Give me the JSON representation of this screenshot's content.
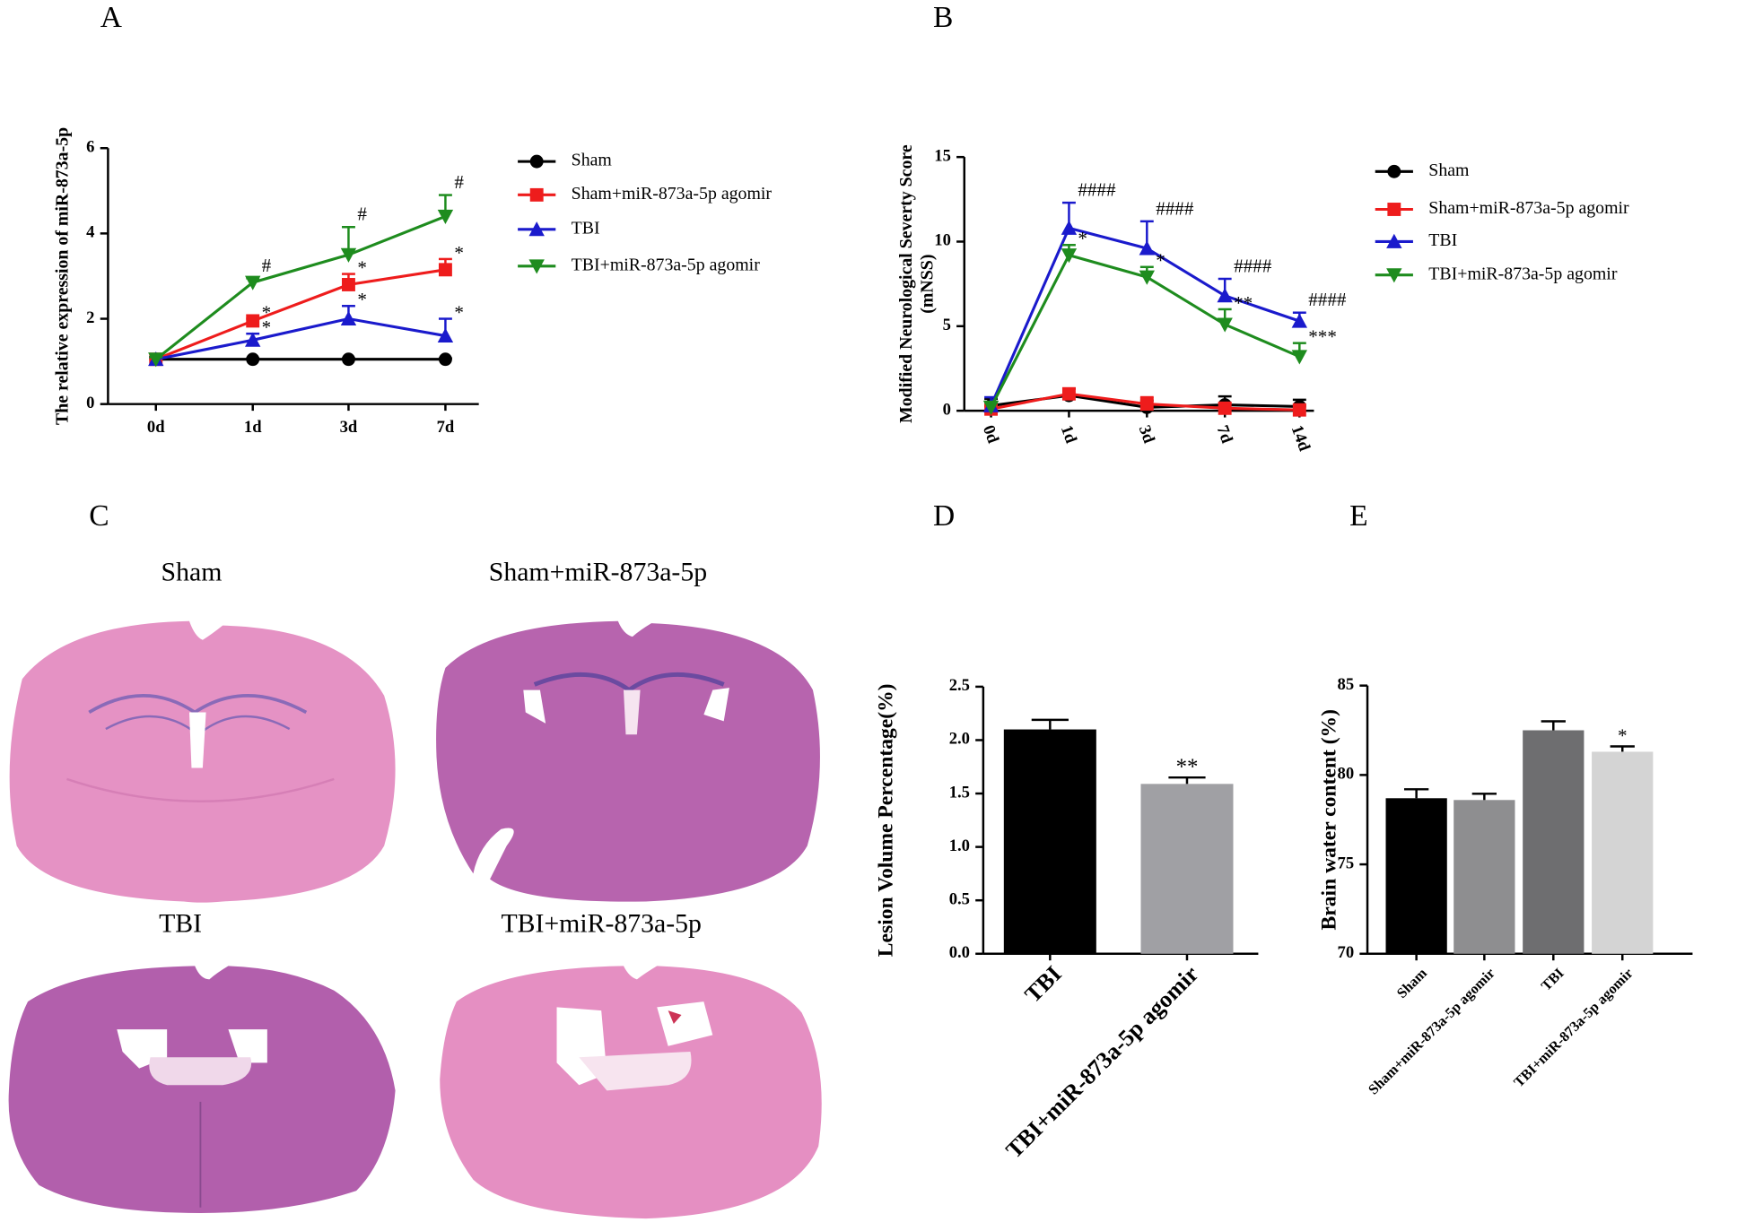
{
  "panels": [
    "A",
    "B",
    "C",
    "D",
    "E"
  ],
  "histology": {
    "labels": [
      "Sham",
      "Sham+miR-873a-5p",
      "TBI",
      "TBI+miR-873a-5p"
    ]
  },
  "chart_data": [
    {
      "type": "line",
      "ylabel": "The relative expression of miR-873a-5p",
      "categories": [
        "0d",
        "1d",
        "3d",
        "7d"
      ],
      "ylim": [
        0,
        6
      ],
      "yticks": [
        0,
        2,
        4,
        6
      ],
      "series": [
        {
          "name": "Sham",
          "color": "#000000",
          "marker": "circle",
          "values": [
            1.05,
            1.05,
            1.05,
            1.05
          ],
          "errors": [
            0.05,
            0.02,
            0.02,
            0.02
          ]
        },
        {
          "name": "Sham+miR-873a-5p agomir",
          "color": "#ee1c1c",
          "marker": "square",
          "values": [
            1.05,
            1.95,
            2.8,
            3.15
          ],
          "errors": [
            0.05,
            0.05,
            0.25,
            0.25
          ],
          "annotations": [
            null,
            "*",
            "*",
            "*"
          ]
        },
        {
          "name": "TBI",
          "color": "#1a1acc",
          "marker": "triangle-up",
          "values": [
            1.05,
            1.5,
            2.0,
            1.6
          ],
          "errors": [
            0.05,
            0.15,
            0.3,
            0.4
          ],
          "annotations": [
            null,
            "*",
            "*",
            "*"
          ]
        },
        {
          "name": "TBI+miR-873a-5p agomir",
          "color": "#1e8c1e",
          "marker": "triangle-down",
          "values": [
            1.05,
            2.85,
            3.5,
            4.4
          ],
          "errors": [
            0.05,
            0.1,
            0.65,
            0.5
          ],
          "annotations": [
            null,
            "#",
            "#",
            "#"
          ]
        }
      ]
    },
    {
      "type": "line",
      "ylabel": [
        "Modified Neurological Severty Score",
        "(mNSS)"
      ],
      "categories": [
        "0d",
        "1d",
        "3d",
        "7d",
        "14d"
      ],
      "ylim": [
        0,
        15
      ],
      "yticks": [
        0,
        5,
        10,
        15
      ],
      "series": [
        {
          "name": "Sham",
          "color": "#000000",
          "marker": "circle",
          "values": [
            0.3,
            0.9,
            0.2,
            0.35,
            0.25
          ],
          "errors": [
            0.4,
            0.4,
            0.4,
            0.5,
            0.4
          ]
        },
        {
          "name": "Sham+miR-873a-5p agomir",
          "color": "#ee1c1c",
          "marker": "square",
          "values": [
            0.1,
            1.0,
            0.4,
            0.15,
            0.05
          ],
          "errors": [
            0.2,
            0.3,
            0.4,
            0.3,
            0.3
          ]
        },
        {
          "name": "TBI",
          "color": "#1a1acc",
          "marker": "triangle-up",
          "values": [
            0.3,
            10.8,
            9.6,
            6.8,
            5.3
          ],
          "errors": [
            0.5,
            1.5,
            1.6,
            1.0,
            0.5
          ],
          "annotations": [
            null,
            "####",
            "####",
            "####",
            "####"
          ]
        },
        {
          "name": "TBI+miR-873a-5p agomir",
          "color": "#1e8c1e",
          "marker": "triangle-down",
          "values": [
            0.2,
            9.2,
            7.9,
            5.1,
            3.2
          ],
          "errors": [
            0.3,
            0.6,
            0.6,
            0.9,
            0.8
          ],
          "annotations": [
            null,
            "*",
            "*",
            "**",
            "***"
          ]
        }
      ]
    },
    {
      "type": "bar",
      "ylabel": "Lesion Volume Percentage(%)",
      "categories": [
        "TBI",
        "TBI+miR-873a-5p agomir"
      ],
      "values": [
        2.1,
        1.59
      ],
      "errors": [
        0.09,
        0.06
      ],
      "annotations": [
        null,
        "**"
      ],
      "colors": [
        "#000000",
        "#a0a0a4"
      ],
      "ylim": [
        0,
        2.5
      ],
      "yticks": [
        {
          "value": 0,
          "label": "0.0"
        },
        0.5,
        {
          "value": 1,
          "label": "1.0"
        },
        1.5,
        {
          "value": 2,
          "label": "2.0"
        },
        2.5
      ]
    },
    {
      "type": "bar",
      "ylabel": "Brain water content (%)",
      "categories": [
        "Sham",
        "Sham+miR-873a-5p agomir",
        "TBI",
        "TBI+miR-873a-5p agomir"
      ],
      "values": [
        78.7,
        78.6,
        82.5,
        81.3
      ],
      "errors": [
        0.5,
        0.35,
        0.5,
        0.3
      ],
      "annotations": [
        null,
        null,
        null,
        "*"
      ],
      "colors": [
        "#000000",
        "#8e8e90",
        "#6e6e70",
        "#d4d4d4"
      ],
      "ylim": [
        70,
        85
      ],
      "yticks": [
        70,
        75,
        80,
        85
      ]
    }
  ]
}
